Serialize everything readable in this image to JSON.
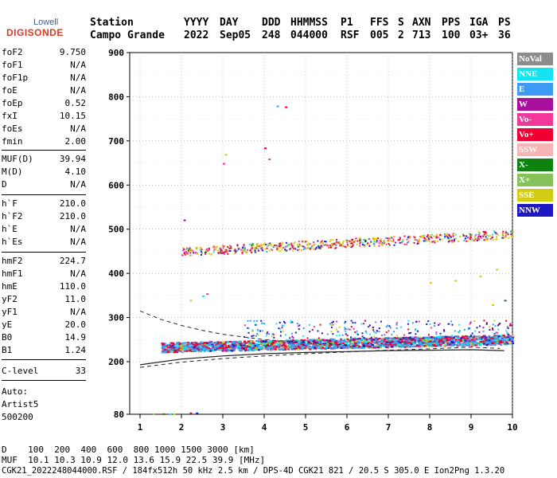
{
  "logo": {
    "line1": "Lowell",
    "line2": "DIGISONDE"
  },
  "header": {
    "labels": [
      "Station",
      "YYYY",
      "DAY",
      "DDD",
      "HHMMSS",
      "P1",
      "FFS",
      "S",
      "AXN",
      "PPS",
      "IGA",
      "PS"
    ],
    "values": [
      "Campo Grande",
      "2022",
      "Sep05",
      "248",
      "044000",
      "RSF",
      "005",
      "2",
      "713",
      "100",
      "03+",
      "36"
    ]
  },
  "params_group1": [
    {
      "label": "foF2",
      "value": "9.750"
    },
    {
      "label": "foF1",
      "value": "N/A"
    },
    {
      "label": "foF1p",
      "value": "N/A"
    },
    {
      "label": "foE",
      "value": "N/A"
    },
    {
      "label": "foEp",
      "value": "0.52"
    },
    {
      "label": "fxI",
      "value": "10.15"
    },
    {
      "label": "foEs",
      "value": "N/A"
    },
    {
      "label": "fmin",
      "value": "2.00"
    }
  ],
  "params_group2": [
    {
      "label": "MUF(D)",
      "value": "39.94"
    },
    {
      "label": "M(D)",
      "value": "4.10"
    },
    {
      "label": "D",
      "value": "N/A"
    }
  ],
  "params_group3": [
    {
      "label": "h`F",
      "value": "210.0"
    },
    {
      "label": "h`F2",
      "value": "210.0"
    },
    {
      "label": "h`E",
      "value": "N/A"
    },
    {
      "label": "h`Es",
      "value": "N/A"
    }
  ],
  "params_group4": [
    {
      "label": "hmF2",
      "value": "224.7"
    },
    {
      "label": "hmF1",
      "value": "N/A"
    },
    {
      "label": "hmE",
      "value": "110.0"
    },
    {
      "label": "yF2",
      "value": "11.0"
    },
    {
      "label": "yF1",
      "value": "N/A"
    },
    {
      "label": "yE",
      "value": "20.0"
    },
    {
      "label": "B0",
      "value": "14.9"
    },
    {
      "label": "B1",
      "value": "1.24"
    }
  ],
  "params_group5": [
    {
      "label": "C-level",
      "value": "33"
    }
  ],
  "auto": {
    "line1": "Auto:",
    "line2": "Artist5",
    "line3": "500200"
  },
  "legend": [
    {
      "label": "NoVal",
      "color": "#8c8c8c"
    },
    {
      "label": "NNE",
      "color": "#16e3f2"
    },
    {
      "label": "E",
      "color": "#3c9bf5"
    },
    {
      "label": "W",
      "color": "#a8109c"
    },
    {
      "label": "Vo-",
      "color": "#f2389a"
    },
    {
      "label": "Vo+",
      "color": "#f00032"
    },
    {
      "label": "SSW",
      "color": "#f7b4b4"
    },
    {
      "label": "X-",
      "color": "#0e820e"
    },
    {
      "label": "X+",
      "color": "#86c25a"
    },
    {
      "label": "SSE",
      "color": "#d2cc12"
    },
    {
      "label": "NNW",
      "color": "#1e19c2"
    }
  ],
  "footer": {
    "d_line": "D    100  200  400  600  800 1000 1500 3000 [km]",
    "muf_line": "MUF  10.1 10.3 10.9 12.0 13.6 15.9 22.5 39.9 [MHz]",
    "file_line": "CGK21_2022248044000.RSF / 184fx512h 50 kHz 2.5 km / DPS-4D CGK21 821 / 20.5 S 305.0 E Ion2Png 1.3.20"
  },
  "chart_data": {
    "type": "scatter",
    "xlim": [
      0.75,
      10
    ],
    "ylim": [
      80,
      900
    ],
    "x_ticks": [
      1,
      2,
      3,
      4,
      5,
      6,
      7,
      8,
      9,
      10
    ],
    "y_ticks": [
      80,
      200,
      300,
      400,
      500,
      600,
      700,
      800,
      900
    ],
    "grid": true,
    "legend_position": "right",
    "traces": [
      {
        "name": "F2 main trace",
        "x_start": 1.5,
        "x_end": 10,
        "y_start": 230,
        "y_end": 248,
        "spread": 22
      },
      {
        "name": "F2 second hop",
        "x_start": 2.0,
        "x_end": 10,
        "y_start": 450,
        "y_end": 490,
        "spread": 20
      }
    ],
    "profile_curve": {
      "x": [
        1,
        2,
        3,
        4,
        5,
        6,
        7,
        8,
        9,
        9.8
      ],
      "y": [
        193,
        206,
        213,
        218,
        221,
        223,
        225,
        226,
        227,
        225
      ]
    },
    "dashed_curves": [
      {
        "x": [
          1,
          1.5,
          2,
          2.5,
          3,
          4,
          5,
          6
        ],
        "y": [
          315,
          296,
          282,
          271,
          262,
          250,
          243,
          238
        ]
      },
      {
        "x": [
          1,
          2,
          3,
          4,
          5,
          6,
          7,
          8,
          9,
          9.7
        ],
        "y": [
          187,
          199,
          207,
          213,
          218,
          222,
          226,
          229,
          233,
          230
        ]
      }
    ]
  }
}
